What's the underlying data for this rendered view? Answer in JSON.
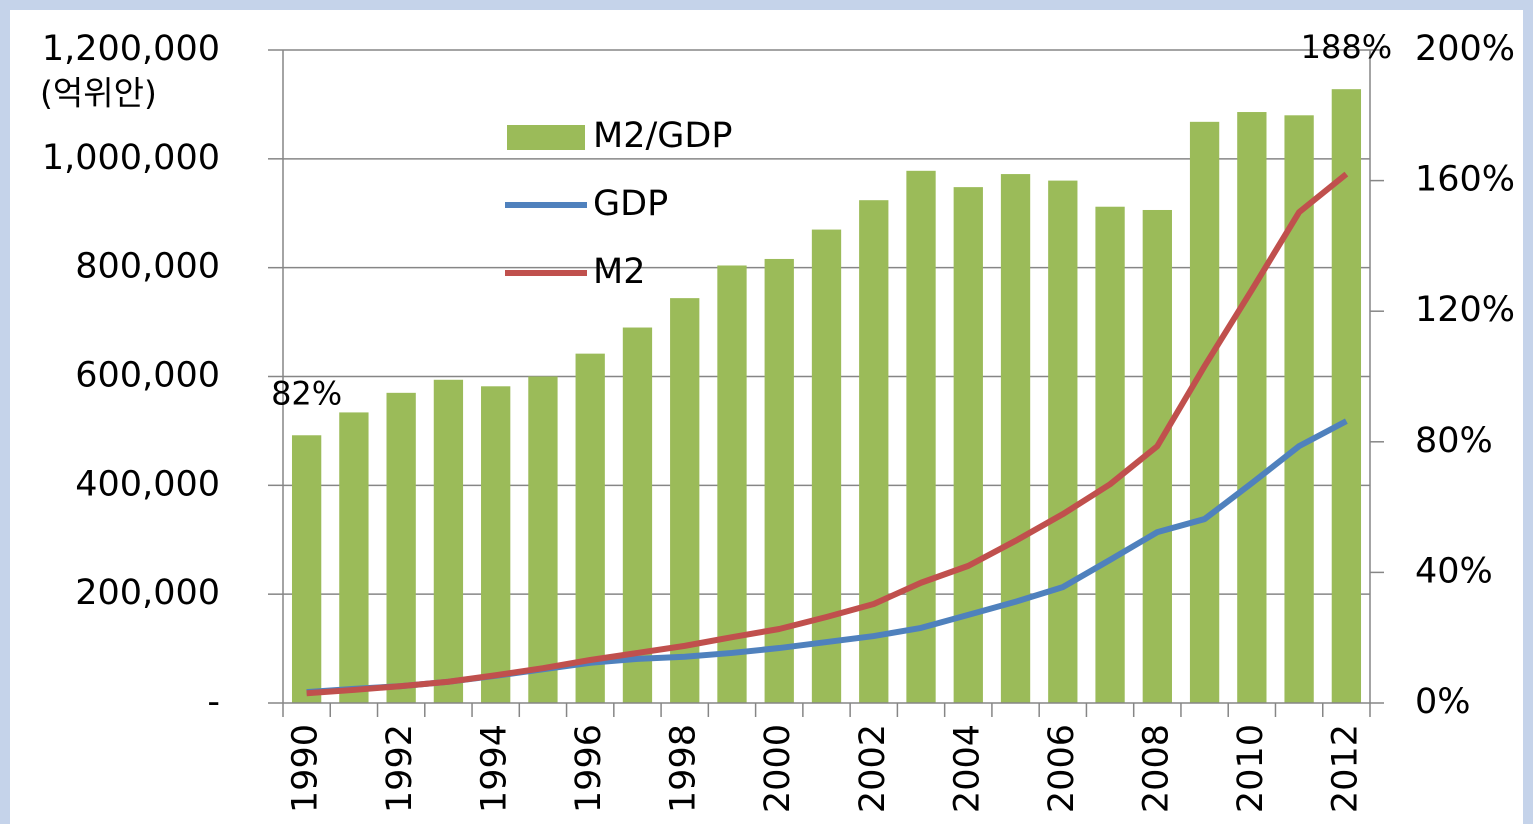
{
  "chart_data": {
    "type": "bar-line",
    "y_label": "(억위안)",
    "categories": [
      "1990",
      null,
      "1992",
      null,
      "1994",
      null,
      "1996",
      null,
      "1998",
      null,
      "2000",
      null,
      "2002",
      null,
      "2004",
      null,
      "2006",
      null,
      "2008",
      null,
      "2010",
      null,
      "2012"
    ],
    "series": [
      {
        "name": "M2/GDP",
        "type": "bar",
        "axis": "y2",
        "color": "#9bbb59",
        "values": [
          82,
          89,
          95,
          99,
          97,
          100,
          107,
          115,
          124,
          134,
          136,
          145,
          154,
          163,
          158,
          162,
          160,
          152,
          151,
          178,
          181,
          180,
          188
        ],
        "value_labels": [
          "82%",
          null,
          null,
          null,
          null,
          null,
          null,
          null,
          null,
          null,
          null,
          null,
          null,
          null,
          null,
          null,
          null,
          null,
          null,
          null,
          null,
          null,
          "188%"
        ]
      },
      {
        "name": "GDP",
        "type": "line",
        "color": "#4f81bd",
        "values": [
          20000,
          26000,
          31000,
          39000,
          50000,
          62000,
          74000,
          81000,
          85000,
          92000,
          101000,
          112000,
          123000,
          138000,
          162000,
          186000,
          213000,
          263000,
          314000,
          338000,
          404000,
          472000,
          518000
        ]
      },
      {
        "name": "M2",
        "type": "line",
        "color": "#c0504d",
        "values": [
          18000,
          24000,
          31000,
          39000,
          51000,
          64000,
          79000,
          92000,
          105000,
          121000,
          136000,
          158000,
          182000,
          221000,
          252000,
          298000,
          347000,
          402000,
          472000,
          619000,
          759000,
          902000,
          972000
        ]
      }
    ],
    "ylim": [
      0,
      1200000
    ],
    "yticks": [
      {
        "value": 0,
        "label": "-"
      },
      {
        "value": 200000,
        "label": "200,000"
      },
      {
        "value": 400000,
        "label": "400,000"
      },
      {
        "value": 600000,
        "label": "600,000"
      },
      {
        "value": 800000,
        "label": "800,000"
      },
      {
        "value": 1000000,
        "label": "1,000,000"
      },
      {
        "value": 1200000,
        "label": "1,200,000"
      }
    ],
    "y2lim": [
      0,
      200
    ],
    "y2ticks": [
      {
        "value": 0,
        "label": "0%"
      },
      {
        "value": 40,
        "label": "40%"
      },
      {
        "value": 80,
        "label": "80%"
      },
      {
        "value": 120,
        "label": "120%"
      },
      {
        "value": 160,
        "label": "160%"
      },
      {
        "value": 200,
        "label": "200%"
      }
    ],
    "grid": true,
    "legend": "upper left"
  }
}
